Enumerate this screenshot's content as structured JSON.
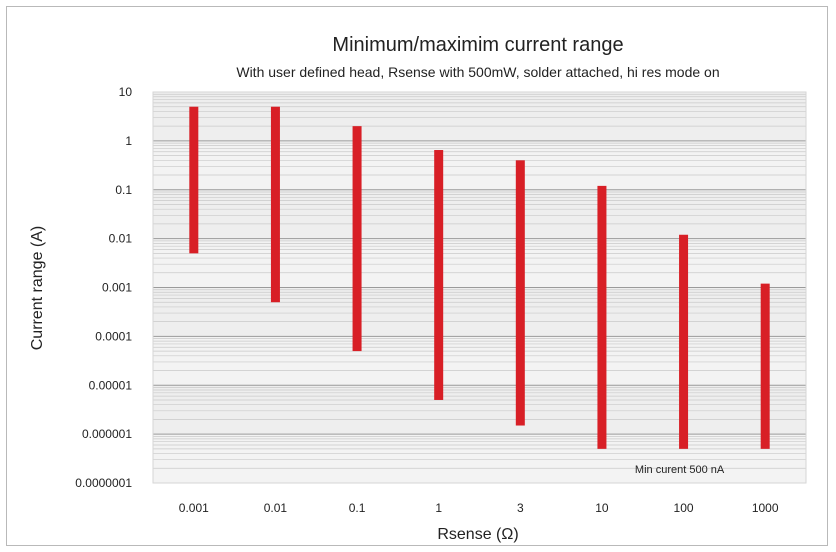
{
  "chart_data": {
    "type": "bar",
    "title": "Minimum/maximim current range",
    "subtitle": "With user defined head, Rsense with 500mW, solder attached, hi res mode on",
    "xlabel": "Rsense (Ω)",
    "ylabel": "Current range (A)",
    "yscale": "log",
    "ylim": [
      1e-07,
      10
    ],
    "yticks": [
      "10",
      "1",
      "0.1",
      "0.01",
      "0.001",
      "0.0001",
      "0.00001",
      "0.000001",
      "0.0000001"
    ],
    "ytick_values": [
      10,
      1,
      0.1,
      0.01,
      0.001,
      0.0001,
      1e-05,
      1e-06,
      1e-07
    ],
    "categories": [
      "0.001",
      "0.01",
      "0.1",
      "1",
      "3",
      "10",
      "100",
      "1000"
    ],
    "series": [
      {
        "low": [
          0.005,
          0.0005,
          5e-05,
          5e-06,
          1.5e-06,
          5e-07,
          5e-07,
          5e-07
        ],
        "high": [
          5,
          5,
          2,
          0.65,
          0.4,
          0.12,
          0.012,
          0.0012
        ],
        "color": "#d81f26"
      }
    ],
    "annotations": [
      "Min curent 500 nA"
    ],
    "grid": true
  }
}
